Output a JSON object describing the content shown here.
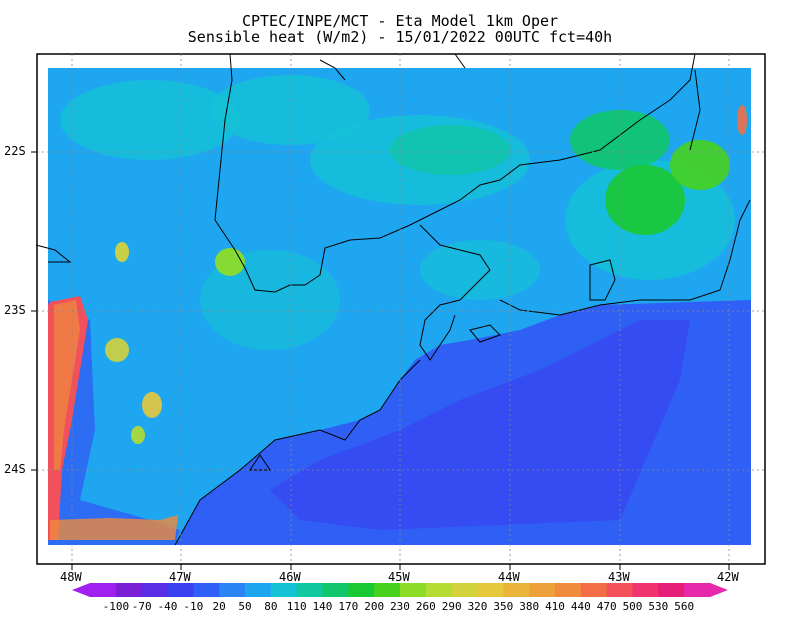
{
  "title_line1": "CPTEC/INPE/MCT -  Eta Model 1km Oper",
  "title_line2": "Sensible heat (W/m2) - 15/01/2022 00UTC fct=40h",
  "lon_labels": [
    "48W",
    "47W",
    "46W",
    "45W",
    "44W",
    "43W",
    "42W"
  ],
  "lat_labels": [
    "22S",
    "23S",
    "24S"
  ],
  "colorbar": {
    "labels": [
      "-100",
      "-70",
      "-40",
      "-10",
      "20",
      "50",
      "80",
      "110",
      "140",
      "170",
      "200",
      "230",
      "260",
      "290",
      "320",
      "350",
      "380",
      "410",
      "440",
      "470",
      "500",
      "530",
      "560"
    ],
    "colors": [
      "#a020f0",
      "#7a1fd6",
      "#5a2ee6",
      "#3a3ff0",
      "#2f5ff5",
      "#2a84f5",
      "#1ea7f0",
      "#14c2d6",
      "#10c8a0",
      "#10c66a",
      "#19c832",
      "#46d21e",
      "#8cdc28",
      "#b4dc32",
      "#d2d23c",
      "#e6c83c",
      "#eab43a",
      "#eea03a",
      "#f08a3c",
      "#f26e46",
      "#f2505a",
      "#f0326e",
      "#e61e78",
      "#e628aa"
    ]
  },
  "regions": {
    "ocean": "#2f5ff5",
    "land_low": "#1ea7f0",
    "land_mid": "#14c2d6",
    "land_high": "#10c66a",
    "hot": "#f2505a"
  }
}
